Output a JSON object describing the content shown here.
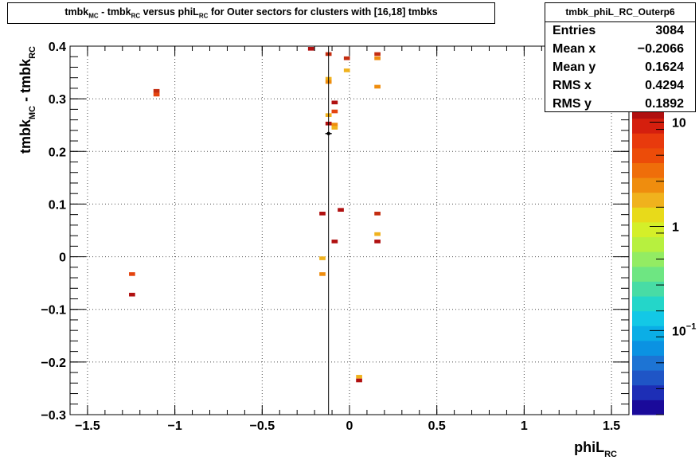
{
  "title": {
    "prefix": "tmbk",
    "sub1": "MC",
    "mid1": " - tmbk",
    "sub2": "RC",
    "mid2": " versus phiL",
    "sub3": "RC",
    "suffix": " for Outer sectors for clusters with [16,18] tmbks"
  },
  "stats": {
    "name": "tmbk_phiL_RC_Outerp6",
    "rows": [
      {
        "label": "Entries",
        "value": "3084"
      },
      {
        "label": "Mean x",
        "value": "−0.2066"
      },
      {
        "label": "Mean y",
        "value": "0.1624"
      },
      {
        "label": "RMS x",
        "value": "0.4294"
      },
      {
        "label": "RMS y",
        "value": "0.1892"
      }
    ]
  },
  "chart_data": {
    "type": "heatmap",
    "xlim": [
      -1.6,
      1.6
    ],
    "ylim": [
      -0.3,
      0.4
    ],
    "grid": true,
    "log_z": true,
    "xlabel": {
      "main": "phiL",
      "sub": "RC"
    },
    "ylabel": {
      "main1": "tmbk",
      "sub1": "MC",
      "main2": " - tmbk",
      "sub2": "RC"
    },
    "x_ticks": [
      {
        "value": -1.5,
        "label": "−1.5"
      },
      {
        "value": -1,
        "label": "−1"
      },
      {
        "value": -0.5,
        "label": "−0.5"
      },
      {
        "value": 0,
        "label": "0"
      },
      {
        "value": 0.5,
        "label": "0.5"
      },
      {
        "value": 1,
        "label": "1"
      },
      {
        "value": 1.5,
        "label": "1.5"
      }
    ],
    "y_ticks": [
      {
        "value": -0.3,
        "label": "−0.3"
      },
      {
        "value": -0.2,
        "label": "−0.2"
      },
      {
        "value": -0.1,
        "label": "−0.1"
      },
      {
        "value": 0,
        "label": "0"
      },
      {
        "value": 0.1,
        "label": "0.1"
      },
      {
        "value": 0.2,
        "label": "0.2"
      },
      {
        "value": 0.3,
        "label": "0.3"
      },
      {
        "value": 0.4,
        "label": "0.4"
      }
    ],
    "cells": [
      {
        "x": -0.22,
        "y": 0.395,
        "color": "#b01010"
      },
      {
        "x": -0.12,
        "y": 0.385,
        "color": "#c42d10"
      },
      {
        "x": -0.015,
        "y": 0.377,
        "color": "#c42d10"
      },
      {
        "x": 0.16,
        "y": 0.385,
        "color": "#c42d10"
      },
      {
        "x": 0.16,
        "y": 0.377,
        "color": "#ef8d0e"
      },
      {
        "x": -0.015,
        "y": 0.354,
        "color": "#f0b21d"
      },
      {
        "x": -0.12,
        "y": 0.338,
        "color": "#f0b21d"
      },
      {
        "x": -0.12,
        "y": 0.332,
        "color": "#ef8d0e"
      },
      {
        "x": 0.16,
        "y": 0.323,
        "color": "#ef8d0e"
      },
      {
        "x": -1.105,
        "y": 0.315,
        "color": "#c42d10"
      },
      {
        "x": -1.105,
        "y": 0.308,
        "color": "#e4440f"
      },
      {
        "x": -0.085,
        "y": 0.293,
        "color": "#b01010"
      },
      {
        "x": -0.085,
        "y": 0.276,
        "color": "#e4440f"
      },
      {
        "x": -0.12,
        "y": 0.269,
        "color": "#f0b21d"
      },
      {
        "x": -0.12,
        "y": 0.253,
        "color": "#b01010"
      },
      {
        "x": -0.085,
        "y": 0.251,
        "color": "#ef8d0e"
      },
      {
        "x": -0.085,
        "y": 0.245,
        "color": "#f0b21d"
      },
      {
        "x": -0.155,
        "y": 0.082,
        "color": "#b01010"
      },
      {
        "x": -0.05,
        "y": 0.089,
        "color": "#b01010"
      },
      {
        "x": 0.16,
        "y": 0.082,
        "color": "#c42d10"
      },
      {
        "x": 0.16,
        "y": 0.043,
        "color": "#f0b21d"
      },
      {
        "x": -0.085,
        "y": 0.029,
        "color": "#b01010"
      },
      {
        "x": 0.16,
        "y": 0.029,
        "color": "#b01010"
      },
      {
        "x": -0.155,
        "y": -0.003,
        "color": "#f0b21d"
      },
      {
        "x": -0.155,
        "y": -0.033,
        "color": "#ef8d0e"
      },
      {
        "x": -1.245,
        "y": -0.033,
        "color": "#e4440f"
      },
      {
        "x": -1.245,
        "y": -0.072,
        "color": "#b01010"
      },
      {
        "x": 0.055,
        "y": -0.228,
        "color": "#f0b21d"
      },
      {
        "x": 0.055,
        "y": -0.235,
        "color": "#b01010"
      }
    ],
    "cell_size": {
      "dx": 0.035,
      "dy": 0.007
    },
    "profile": {
      "x": -0.12,
      "y": 0.234
    },
    "palette": [
      "#1a0a9a",
      "#1d2eb6",
      "#1f55c6",
      "#1d74d4",
      "#0b92e2",
      "#0baee6",
      "#13c8e6",
      "#24d6c9",
      "#48dca5",
      "#6ee682",
      "#93ec63",
      "#b7f03f",
      "#d4ef29",
      "#e8da1a",
      "#f0b21d",
      "#ef8d0e",
      "#ef6e0a",
      "#ec4c09",
      "#e83a0d",
      "#d51f0e",
      "#b01010"
    ],
    "colorbar_labels": [
      {
        "frac": 0.06,
        "label": "10",
        "exp": ""
      },
      {
        "frac": 0.395,
        "label": "1",
        "exp": ""
      },
      {
        "frac": 0.73,
        "label": "10",
        "exp": "−1"
      }
    ]
  }
}
